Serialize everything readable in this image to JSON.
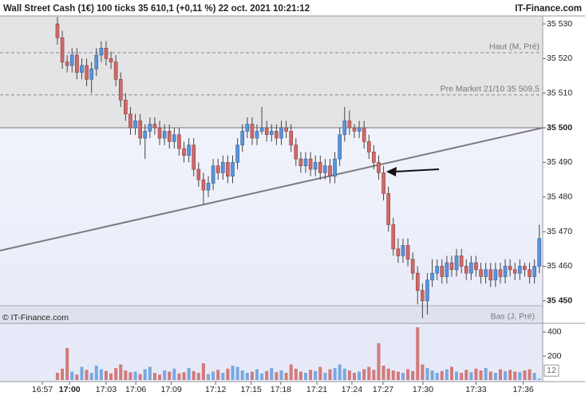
{
  "chart_data": {
    "type": "candlestick",
    "title": "Wall Street Cash (1€) 100 ticks 35 610,1 (+0,11 %) 22 oct. 2021 10:21:12",
    "source": "IT-Finance.com",
    "watermark": "© IT-Finance.com",
    "up_color": "#5b95db",
    "down_color": "#d06a6a",
    "xlim": [
      -11.8,
      99.7
    ],
    "xticks": [
      {
        "value": -3.1,
        "label": "16:57"
      },
      {
        "value": 2.5,
        "label": "17:00",
        "bold": true
      },
      {
        "value": 10,
        "label": "17:03"
      },
      {
        "value": 16.1,
        "label": "17:06"
      },
      {
        "value": 23.4,
        "label": "17:09"
      },
      {
        "value": 32.5,
        "label": "17:12"
      },
      {
        "value": 39.8,
        "label": "17:15"
      },
      {
        "value": 45.9,
        "label": "17:18"
      },
      {
        "value": 53.3,
        "label": "17:21"
      },
      {
        "value": 60.5,
        "label": "17:24"
      },
      {
        "value": 66.9,
        "label": "17:27"
      },
      {
        "value": 75.1,
        "label": "17:30"
      },
      {
        "value": 86,
        "label": "17:33"
      },
      {
        "value": 95.7,
        "label": "17:36"
      }
    ],
    "ylim": [
      35443.5,
      35532.3
    ],
    "yticks": [
      {
        "value": 35530,
        "label": "35 530"
      },
      {
        "value": 35520,
        "label": "35 520"
      },
      {
        "value": 35510,
        "label": "35 510"
      },
      {
        "value": 35500,
        "label": "35 500",
        "bold": true
      },
      {
        "value": 35490,
        "label": "35 490"
      },
      {
        "value": 35480,
        "label": "35 480"
      },
      {
        "value": 35470,
        "label": "35 470"
      },
      {
        "value": 35460,
        "label": "35 460"
      },
      {
        "value": 35450,
        "label": "35 450",
        "bold": true
      }
    ],
    "reference_level": 35500,
    "levels": [
      {
        "label": "Haut (M, Pré)",
        "value": 35521.7
      },
      {
        "label": "Pre Market 21/10 35 509,5",
        "value": 35509.5
      },
      {
        "label": "Bas (J, Pré)",
        "value": 35448.6
      }
    ],
    "trendline": {
      "x": [
        -11.8,
        99.7
      ],
      "y": [
        35464.5,
        35500
      ]
    },
    "open": [
      35530,
      35526,
      35519,
      35518,
      35521,
      35516,
      35518,
      35514,
      35517,
      35521,
      35523,
      35520,
      35519,
      35514,
      35508,
      35504,
      35500,
      35502,
      35497,
      35499,
      35501,
      35500,
      35497,
      35499,
      35496,
      35498,
      35494,
      35492,
      35495,
      35488,
      35485,
      35482,
      35484,
      35489,
      35487,
      35490,
      35486,
      35490,
      35495,
      35499,
      35501,
      35497,
      35499,
      35500,
      35498,
      35499,
      35497,
      35500,
      35499,
      35495,
      35491,
      35489,
      35491,
      35488,
      35490,
      35487,
      35489,
      35486,
      35491,
      35498,
      35502,
      35500,
      35499,
      35500,
      35496,
      35493,
      35490,
      35487,
      35481,
      35472,
      35465,
      35463,
      35466,
      35462,
      35458,
      35453,
      35450,
      35456,
      35458,
      35460,
      35457,
      35461,
      35459,
      35463,
      35460,
      35458,
      35461,
      35459,
      35457,
      35459,
      35456,
      35459,
      35457,
      35460,
      35459,
      35458,
      35460,
      35459,
      35457,
      35460
    ],
    "high": [
      35532,
      35528,
      35521,
      35523,
      35523,
      35520,
      35520,
      35519,
      35523,
      35525,
      35525,
      35522,
      35521,
      35516,
      35510,
      35506,
      35504,
      35504,
      35501,
      35503,
      35503,
      35502,
      35501,
      35501,
      35500,
      35500,
      35496,
      35497,
      35497,
      35490,
      35487,
      35486,
      35491,
      35491,
      35492,
      35492,
      35492,
      35497,
      35501,
      35503,
      35503,
      35501,
      35506,
      35502,
      35501,
      35501,
      35502,
      35502,
      35501,
      35497,
      35493,
      35493,
      35493,
      35492,
      35492,
      35491,
      35491,
      35493,
      35500,
      35506,
      35505,
      35501,
      35502,
      35502,
      35498,
      35495,
      35492,
      35489,
      35483,
      35474,
      35468,
      35468,
      35468,
      35464,
      35460,
      35455,
      35458,
      35462,
      35462,
      35462,
      35463,
      35463,
      35465,
      35465,
      35462,
      35463,
      35463,
      35461,
      35461,
      35461,
      35461,
      35461,
      35462,
      35462,
      35461,
      35462,
      35461,
      35461,
      35462,
      35472
    ],
    "low": [
      35524,
      35517,
      35516,
      35516,
      35514,
      35514,
      35512,
      35510,
      35515,
      35519,
      35518,
      35517,
      35512,
      35506,
      35502,
      35498,
      35498,
      35495,
      35491,
      35497,
      35498,
      35495,
      35495,
      35494,
      35494,
      35492,
      35490,
      35490,
      35486,
      35483,
      35478,
      35480,
      35482,
      35485,
      35485,
      35484,
      35484,
      35488,
      35493,
      35497,
      35495,
      35495,
      35498,
      35496,
      35496,
      35495,
      35495,
      35497,
      35493,
      35489,
      35487,
      35487,
      35486,
      35486,
      35485,
      35485,
      35484,
      35484,
      35489,
      35496,
      35498,
      35497,
      35497,
      35494,
      35491,
      35488,
      35485,
      35479,
      35470,
      35463,
      35461,
      35461,
      35460,
      35456,
      35449,
      35445,
      35446,
      35454,
      35456,
      35455,
      35455,
      35457,
      35457,
      35458,
      35456,
      35456,
      35457,
      35455,
      35455,
      35454,
      35454,
      35455,
      35455,
      35457,
      35456,
      35456,
      35457,
      35455,
      35455,
      35458
    ],
    "close": [
      35526,
      35519,
      35518,
      35521,
      35516,
      35518,
      35514,
      35517,
      35521,
      35523,
      35520,
      35519,
      35514,
      35508,
      35504,
      35500,
      35502,
      35497,
      35499,
      35501,
      35500,
      35497,
      35499,
      35496,
      35498,
      35494,
      35492,
      35495,
      35488,
      35485,
      35482,
      35484,
      35489,
      35487,
      35490,
      35486,
      35490,
      35495,
      35499,
      35501,
      35497,
      35499,
      35500,
      35498,
      35499,
      35497,
      35500,
      35499,
      35495,
      35491,
      35489,
      35491,
      35488,
      35490,
      35487,
      35489,
      35486,
      35491,
      35498,
      35502,
      35500,
      35499,
      35500,
      35496,
      35493,
      35490,
      35487,
      35481,
      35472,
      35465,
      35463,
      35466,
      35462,
      35458,
      35453,
      35450,
      35456,
      35458,
      35460,
      35457,
      35461,
      35459,
      35463,
      35460,
      35458,
      35461,
      35459,
      35457,
      35459,
      35456,
      35459,
      35457,
      35460,
      35459,
      35458,
      35460,
      35459,
      35457,
      35460,
      35468
    ],
    "volume": [
      60,
      95,
      267,
      70,
      45,
      110,
      85,
      60,
      120,
      90,
      75,
      55,
      100,
      130,
      80,
      65,
      70,
      50,
      90,
      110,
      60,
      45,
      80,
      70,
      95,
      55,
      65,
      100,
      75,
      60,
      140,
      50,
      70,
      85,
      60,
      95,
      120,
      110,
      80,
      60,
      70,
      90,
      55,
      75,
      100,
      65,
      80,
      60,
      130,
      95,
      70,
      60,
      85,
      75,
      110,
      60,
      90,
      100,
      130,
      95,
      80,
      60,
      70,
      90,
      110,
      85,
      307,
      120,
      95,
      80,
      70,
      60,
      90,
      75,
      440,
      130,
      100,
      80,
      60,
      75,
      90,
      110,
      70,
      60,
      85,
      65,
      95,
      80,
      100,
      70,
      60,
      90,
      75,
      85,
      70,
      65,
      80,
      90,
      60,
      12
    ],
    "volume_ylim": [
      0,
      473
    ],
    "volume_yticks": [
      400,
      200
    ]
  }
}
